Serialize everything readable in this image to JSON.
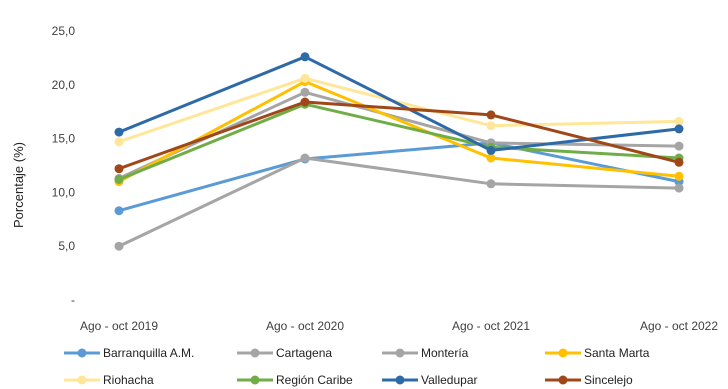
{
  "chart_data": {
    "type": "line",
    "title": "",
    "xlabel": "",
    "ylabel": "Porcentaje (%)",
    "categories": [
      "Ago - oct 2019",
      "Ago - oct 2020",
      "Ago - oct 2021",
      "Ago - oct 2022"
    ],
    "y_tick_labels": [
      "-",
      "5,0",
      "10,0",
      "15,0",
      "20,0",
      "25,0"
    ],
    "ylim": [
      0,
      25
    ],
    "grid": false,
    "legend_position": "bottom",
    "series": [
      {
        "name": "Barranquilla A.M.",
        "color": "#5b9bd5",
        "values": [
          8.3,
          13.1,
          14.6,
          11.0
        ]
      },
      {
        "name": "Cartagena",
        "color": "#a5a5a5",
        "values": [
          5.0,
          13.2,
          10.8,
          10.4
        ]
      },
      {
        "name": "Montería",
        "color": "#a5a5a5",
        "values": [
          11.3,
          19.3,
          14.6,
          14.3
        ]
      },
      {
        "name": "Santa Marta",
        "color": "#ffc000",
        "values": [
          11.0,
          20.3,
          13.2,
          11.5
        ]
      },
      {
        "name": "Riohacha",
        "color": "#ffe699",
        "values": [
          14.7,
          20.6,
          16.2,
          16.6
        ]
      },
      {
        "name": "Región Caribe",
        "color": "#70ad47",
        "values": [
          11.2,
          18.2,
          14.2,
          13.2
        ]
      },
      {
        "name": "Valledupar",
        "color": "#2e6aa8",
        "values": [
          15.6,
          22.6,
          13.9,
          15.9
        ]
      },
      {
        "name": "Sincelejo",
        "color": "#a0471a",
        "values": [
          12.2,
          18.4,
          17.2,
          12.8
        ]
      }
    ]
  }
}
